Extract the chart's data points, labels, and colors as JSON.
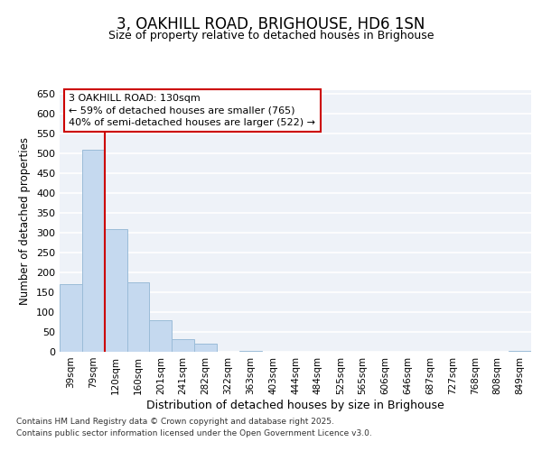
{
  "title": "3, OAKHILL ROAD, BRIGHOUSE, HD6 1SN",
  "subtitle": "Size of property relative to detached houses in Brighouse",
  "xlabel": "Distribution of detached houses by size in Brighouse",
  "ylabel": "Number of detached properties",
  "bar_color": "#c5d9ef",
  "bar_edge_color": "#9bbcd8",
  "categories": [
    "39sqm",
    "79sqm",
    "120sqm",
    "160sqm",
    "201sqm",
    "241sqm",
    "282sqm",
    "322sqm",
    "363sqm",
    "403sqm",
    "444sqm",
    "484sqm",
    "525sqm",
    "565sqm",
    "606sqm",
    "646sqm",
    "687sqm",
    "727sqm",
    "768sqm",
    "808sqm",
    "849sqm"
  ],
  "values": [
    170,
    510,
    310,
    175,
    80,
    33,
    20,
    0,
    3,
    0,
    0,
    0,
    0,
    0,
    0,
    0,
    0,
    0,
    0,
    0,
    3
  ],
  "ylim": [
    0,
    660
  ],
  "yticks": [
    0,
    50,
    100,
    150,
    200,
    250,
    300,
    350,
    400,
    450,
    500,
    550,
    600,
    650
  ],
  "property_line_x": 1.5,
  "property_line_color": "#cc0000",
  "annotation_text": "3 OAKHILL ROAD: 130sqm\n← 59% of detached houses are smaller (765)\n40% of semi-detached houses are larger (522) →",
  "annotation_box_color": "#cc0000",
  "footer_line1": "Contains HM Land Registry data © Crown copyright and database right 2025.",
  "footer_line2": "Contains public sector information licensed under the Open Government Licence v3.0.",
  "background_color": "#eef2f8",
  "grid_color": "#ffffff",
  "fig_bg_color": "#ffffff"
}
